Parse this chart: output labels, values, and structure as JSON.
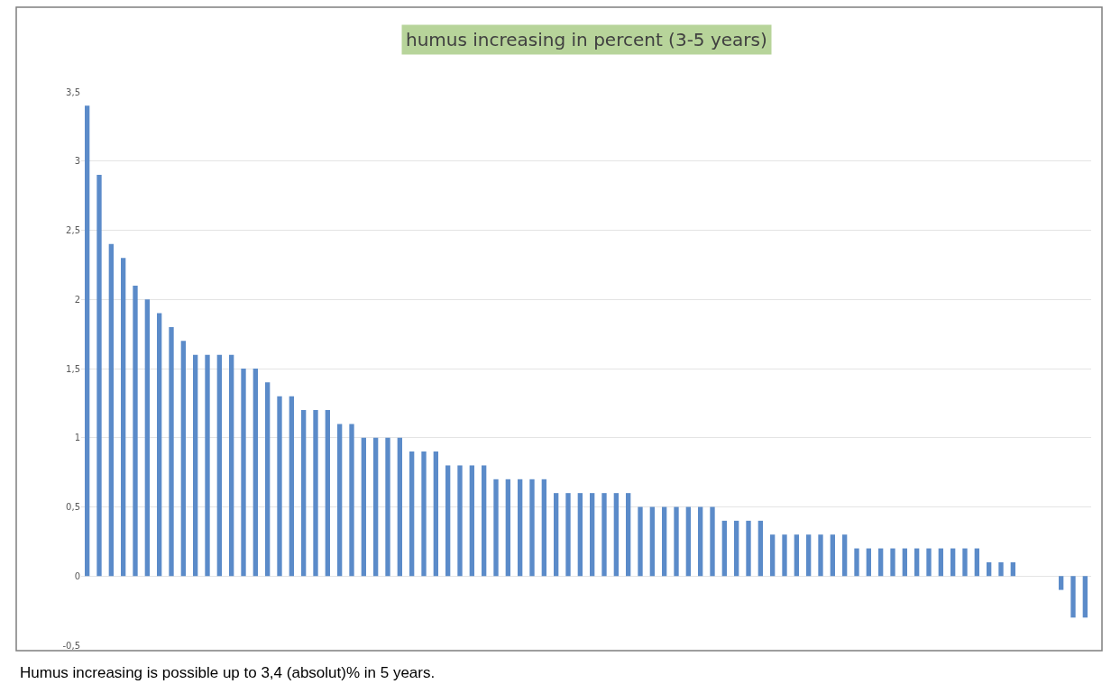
{
  "chart_data": {
    "type": "bar",
    "title": "humus increasing in percent (3-5 years)",
    "categories": [
      null,
      null,
      null,
      null,
      null,
      null,
      null,
      null,
      null,
      null,
      null,
      null,
      null,
      null,
      null,
      null,
      null,
      null,
      null,
      null,
      null,
      null,
      null,
      null,
      null,
      null,
      null,
      null,
      null,
      null,
      null,
      null,
      null,
      null,
      null,
      null,
      null,
      null,
      null,
      null,
      null,
      null,
      null,
      null,
      null,
      null,
      null,
      null,
      null,
      null,
      null,
      null,
      null,
      null,
      null,
      null,
      null,
      null,
      null,
      null,
      null,
      null,
      null,
      null,
      null,
      null,
      null,
      null,
      null,
      null,
      null,
      null,
      null,
      null,
      null,
      null,
      null,
      null,
      null,
      null,
      null,
      null,
      null,
      null
    ],
    "values": [
      3.4,
      2.9,
      2.4,
      2.3,
      2.1,
      2.0,
      1.9,
      1.8,
      1.7,
      1.6,
      1.6,
      1.6,
      1.6,
      1.5,
      1.5,
      1.4,
      1.3,
      1.3,
      1.2,
      1.2,
      1.2,
      1.1,
      1.1,
      1.0,
      1.0,
      1.0,
      1.0,
      0.9,
      0.9,
      0.9,
      0.8,
      0.8,
      0.8,
      0.8,
      0.7,
      0.7,
      0.7,
      0.7,
      0.7,
      0.6,
      0.6,
      0.6,
      0.6,
      0.6,
      0.6,
      0.6,
      0.5,
      0.5,
      0.5,
      0.5,
      0.5,
      0.5,
      0.5,
      0.4,
      0.4,
      0.4,
      0.4,
      0.3,
      0.3,
      0.3,
      0.3,
      0.3,
      0.3,
      0.3,
      0.2,
      0.2,
      0.2,
      0.2,
      0.2,
      0.2,
      0.2,
      0.2,
      0.2,
      0.2,
      0.2,
      0.1,
      0.1,
      0.1,
      0,
      0,
      0,
      -0.1,
      -0.3,
      -0.3
    ],
    "color": "#5b8bc9",
    "ylim": [
      -0.5,
      3.5
    ],
    "yticks": [
      {
        "value": -0.5,
        "label": "-0,5"
      },
      0,
      {
        "value": 0.5,
        "label": "0,5"
      },
      1,
      {
        "value": 1.5,
        "label": "1,5"
      },
      2,
      {
        "value": 2.5,
        "label": "2,5"
      },
      3,
      {
        "value": 3.5,
        "label": "3,5"
      }
    ],
    "grid": "y",
    "tick_labels": "y",
    "annotations": [
      "Humus increasing is possible up to 3,4 (absolut)% in 5 years."
    ]
  }
}
